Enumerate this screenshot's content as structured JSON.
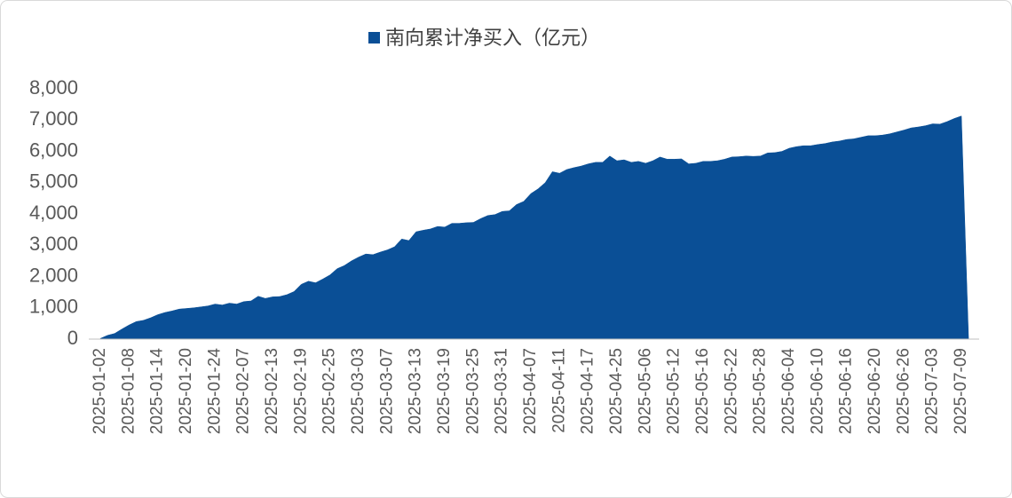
{
  "chart_data": {
    "type": "area",
    "categories": [
      "2025-01-02",
      null,
      null,
      null,
      "2025-01-08",
      null,
      null,
      null,
      "2025-01-14",
      null,
      null,
      null,
      "2025-01-20",
      null,
      null,
      null,
      "2025-01-24",
      null,
      null,
      null,
      "2025-02-07",
      null,
      null,
      null,
      "2025-02-13",
      null,
      null,
      null,
      "2025-02-19",
      null,
      null,
      null,
      "2025-02-25",
      null,
      null,
      null,
      "2025-03-03",
      null,
      null,
      null,
      "2025-03-07",
      null,
      null,
      null,
      "2025-03-13",
      null,
      null,
      null,
      "2025-03-19",
      null,
      null,
      null,
      "2025-03-25",
      null,
      null,
      null,
      "2025-03-31",
      null,
      null,
      null,
      "2025-04-07",
      null,
      null,
      null,
      "2025-04-11",
      null,
      null,
      null,
      "2025-04-17",
      null,
      null,
      null,
      "2025-04-25",
      null,
      null,
      null,
      "2025-05-06",
      null,
      null,
      null,
      "2025-05-12",
      null,
      null,
      null,
      "2025-05-16",
      null,
      null,
      null,
      "2025-05-22",
      null,
      null,
      null,
      "2025-05-28",
      null,
      null,
      null,
      "2025-06-04",
      null,
      null,
      null,
      "2025-06-10",
      null,
      null,
      null,
      "2025-06-16",
      null,
      null,
      null,
      "2025-06-20",
      null,
      null,
      null,
      "2025-06-26",
      null,
      null,
      null,
      "2025-07-03",
      null,
      null,
      null,
      "2025-07-09",
      null
    ],
    "series": [
      {
        "name": "南向累计净买入（亿元）",
        "color": "#0a4f96",
        "values": [
          20,
          120,
          180,
          320,
          450,
          560,
          600,
          680,
          780,
          850,
          900,
          960,
          980,
          1000,
          1030,
          1060,
          1120,
          1090,
          1150,
          1120,
          1200,
          1220,
          1370,
          1300,
          1350,
          1360,
          1420,
          1520,
          1750,
          1850,
          1800,
          1920,
          2050,
          2250,
          2350,
          2500,
          2620,
          2720,
          2700,
          2780,
          2850,
          2950,
          3200,
          3150,
          3430,
          3480,
          3520,
          3600,
          3580,
          3700,
          3700,
          3720,
          3730,
          3850,
          3950,
          3980,
          4080,
          4100,
          4300,
          4400,
          4650,
          4800,
          5000,
          5350,
          5300,
          5420,
          5480,
          5530,
          5600,
          5650,
          5650,
          5850,
          5700,
          5730,
          5650,
          5680,
          5620,
          5700,
          5820,
          5750,
          5750,
          5760,
          5600,
          5620,
          5680,
          5680,
          5700,
          5750,
          5820,
          5830,
          5850,
          5840,
          5850,
          5950,
          5960,
          6000,
          6100,
          6150,
          6180,
          6180,
          6220,
          6250,
          6300,
          6330,
          6380,
          6400,
          6450,
          6500,
          6500,
          6520,
          6560,
          6620,
          6680,
          6750,
          6780,
          6820,
          6880,
          6870,
          6950,
          7050,
          7130,
          0
        ]
      }
    ],
    "ylim": [
      0,
      8000
    ],
    "yticks": [
      0,
      {
        "value": 1000,
        "label": "1,000"
      },
      {
        "value": 2000,
        "label": "2,000"
      },
      {
        "value": 3000,
        "label": "3,000"
      },
      {
        "value": 4000,
        "label": "4,000"
      },
      {
        "value": 5000,
        "label": "5,000"
      },
      {
        "value": 6000,
        "label": "6,000"
      },
      {
        "value": 7000,
        "label": "7,000"
      },
      {
        "value": 8000,
        "label": "8,000"
      }
    ],
    "legend": "top"
  }
}
